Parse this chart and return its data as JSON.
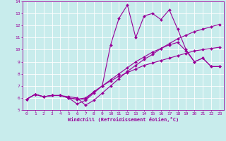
{
  "xlabel": "Windchill (Refroidissement éolien,°C)",
  "bg_color": "#c8ecec",
  "line_color": "#990099",
  "grid_color": "#ffffff",
  "xlim_min": -0.5,
  "xlim_max": 23.5,
  "ylim_min": 5,
  "ylim_max": 14,
  "xticks": [
    0,
    1,
    2,
    3,
    4,
    5,
    6,
    7,
    8,
    9,
    10,
    11,
    12,
    13,
    14,
    15,
    16,
    17,
    18,
    19,
    20,
    21,
    22,
    23
  ],
  "yticks": [
    5,
    6,
    7,
    8,
    9,
    10,
    11,
    12,
    13,
    14
  ],
  "series": [
    {
      "y": [
        5.9,
        6.3,
        6.1,
        6.2,
        6.2,
        6.1,
        6.0,
        5.4,
        5.8,
        6.4,
        7.0,
        7.6,
        8.2,
        8.7,
        9.2,
        9.6,
        10.1,
        10.5,
        10.9,
        11.2,
        11.5,
        11.7,
        11.9,
        12.1
      ]
    },
    {
      "y": [
        5.9,
        6.3,
        6.1,
        6.2,
        6.2,
        6.0,
        5.9,
        6.0,
        6.5,
        7.0,
        7.4,
        7.8,
        8.1,
        8.4,
        8.7,
        8.9,
        9.1,
        9.3,
        9.5,
        9.7,
        9.9,
        10.0,
        10.1,
        10.2
      ]
    },
    {
      "y": [
        5.9,
        6.3,
        6.1,
        6.2,
        6.2,
        6.0,
        5.9,
        5.9,
        6.5,
        7.0,
        7.5,
        8.0,
        8.5,
        9.0,
        9.4,
        9.8,
        10.1,
        10.4,
        10.6,
        9.9,
        9.0,
        9.3,
        8.6,
        8.6
      ]
    },
    {
      "y": [
        5.9,
        6.3,
        6.1,
        6.2,
        6.2,
        6.0,
        5.5,
        5.8,
        6.4,
        7.0,
        10.4,
        12.6,
        13.7,
        11.0,
        12.8,
        13.0,
        12.5,
        13.3,
        11.7,
        10.0,
        9.0,
        9.3,
        8.6,
        8.6
      ]
    }
  ],
  "marker": "D",
  "markersize": 2.0,
  "linewidth": 0.8,
  "tick_fontsize": 4.5,
  "xlabel_fontsize": 5.0
}
